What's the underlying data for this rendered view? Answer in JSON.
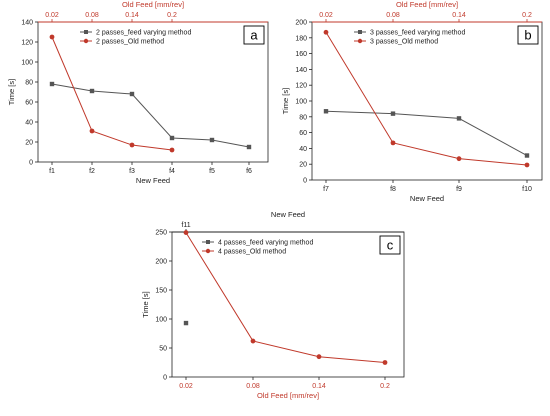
{
  "colors": {
    "gray_series": "#555555",
    "red_series": "#c0392b",
    "axis": "#222222",
    "top_axis": "#c0392b"
  },
  "chart_data": [
    {
      "type": "line",
      "panel_label": "a",
      "top_axis_title": "Old Feed [mm/rev]",
      "top_ticks": [
        "0.02",
        "0.08",
        "0.14",
        "0.2"
      ],
      "xlabel": "New Feed",
      "ylabel": "Time [s]",
      "categories": [
        "f1",
        "f2",
        "f3",
        "f4",
        "f5",
        "f6"
      ],
      "ylim": [
        0,
        140
      ],
      "yticks": [
        0,
        20,
        40,
        60,
        80,
        100,
        120,
        140
      ],
      "legend_position": "top-center",
      "series": [
        {
          "name": "2 passes_feed varying method",
          "color_key": "gray_series",
          "values": [
            78,
            71,
            68,
            24,
            22,
            15
          ]
        },
        {
          "name": "2 passes_Old method",
          "color_key": "red_series",
          "values": [
            125,
            31,
            17,
            12,
            null,
            null
          ]
        }
      ]
    },
    {
      "type": "line",
      "panel_label": "b",
      "top_axis_title": "Old Feed [mm/rev]",
      "top_ticks": [
        "0.02",
        "0.08",
        "0.14",
        "0.2"
      ],
      "xlabel": "New Feed",
      "ylabel": "Time [s]",
      "categories": [
        "f7",
        "f8",
        "f9",
        "f10"
      ],
      "ylim": [
        0,
        200
      ],
      "yticks": [
        0,
        20,
        40,
        60,
        80,
        100,
        120,
        140,
        160,
        180,
        200
      ],
      "legend_position": "top-center",
      "series": [
        {
          "name": "3 passes_feed varying method",
          "color_key": "gray_series",
          "values": [
            87,
            84,
            78,
            31
          ]
        },
        {
          "name": "3 passes_Old method",
          "color_key": "red_series",
          "values": [
            187,
            47,
            27,
            19
          ]
        }
      ]
    },
    {
      "type": "line",
      "panel_label": "c",
      "top_axis_title": "New Feed",
      "top_ticks": [
        "f11"
      ],
      "xlabel": "Old Feed [mm/rev]",
      "ylabel": "Time [s]",
      "categories": [
        "0.02",
        "0.08",
        "0.14",
        "0.2"
      ],
      "ylim": [
        0,
        250
      ],
      "yticks": [
        0,
        50,
        100,
        150,
        200,
        250
      ],
      "legend_position": "top-center",
      "series": [
        {
          "name": "4 passes_feed varying method",
          "color_key": "gray_series",
          "values": [
            93,
            null,
            null,
            null
          ]
        },
        {
          "name": "4 passes_Old method",
          "color_key": "red_series",
          "values": [
            249,
            62,
            35,
            25
          ]
        }
      ]
    }
  ]
}
